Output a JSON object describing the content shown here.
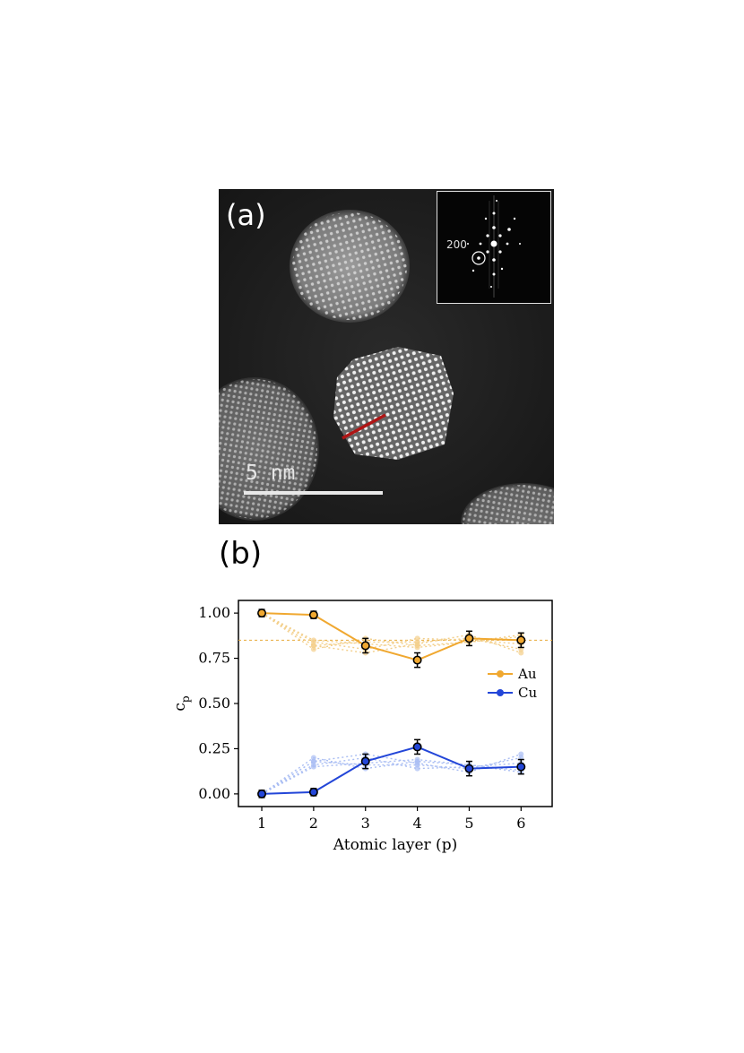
{
  "panel_a": {
    "label": "(a)",
    "scale_bar_text": "5 nm",
    "inset_label": "200"
  },
  "panel_b": {
    "label": "(b)"
  },
  "chart_data": {
    "type": "line",
    "xlabel": "Atomic layer (p)",
    "ylabel": "c_p",
    "x": [
      1,
      2,
      3,
      4,
      5,
      6
    ],
    "xlim": [
      0.55,
      6.6
    ],
    "ylim": [
      -0.07,
      1.07
    ],
    "yticks": [
      0.0,
      0.25,
      0.5,
      0.75,
      1.0
    ],
    "ytick_labels": [
      "0.00",
      "0.25",
      "0.50",
      "0.75",
      "1.00"
    ],
    "xtick_labels": [
      "1",
      "2",
      "3",
      "4",
      "5",
      "6"
    ],
    "reference_line": {
      "y": 0.85,
      "style": "dashed",
      "color": "#e8a93a"
    },
    "legend_placement": "right",
    "series": [
      {
        "name": "Au",
        "color": "#f0a830",
        "values": [
          1.0,
          0.99,
          0.82,
          0.74,
          0.86,
          0.85
        ],
        "errors": [
          0.02,
          0.02,
          0.04,
          0.04,
          0.04,
          0.04
        ]
      },
      {
        "name": "Cu",
        "color": "#2346d8",
        "values": [
          0.0,
          0.01,
          0.18,
          0.26,
          0.14,
          0.15
        ],
        "errors": [
          0.02,
          0.02,
          0.04,
          0.04,
          0.04,
          0.04
        ]
      }
    ],
    "faint_runs": {
      "Au": [
        [
          1.0,
          0.82,
          0.84,
          0.84,
          0.86,
          0.8
        ],
        [
          1.0,
          0.8,
          0.86,
          0.82,
          0.84,
          0.88
        ],
        [
          1.0,
          0.84,
          0.8,
          0.86,
          0.85,
          0.83
        ],
        [
          1.0,
          0.82,
          0.78,
          0.83,
          0.88,
          0.78
        ],
        [
          1.0,
          0.85,
          0.83,
          0.81,
          0.84,
          0.87
        ]
      ],
      "Cu": [
        [
          0.0,
          0.18,
          0.16,
          0.16,
          0.14,
          0.2
        ],
        [
          0.0,
          0.2,
          0.14,
          0.18,
          0.16,
          0.12
        ],
        [
          0.0,
          0.16,
          0.2,
          0.14,
          0.15,
          0.17
        ],
        [
          0.0,
          0.18,
          0.22,
          0.17,
          0.12,
          0.22
        ],
        [
          0.0,
          0.15,
          0.17,
          0.19,
          0.16,
          0.13
        ]
      ]
    }
  }
}
